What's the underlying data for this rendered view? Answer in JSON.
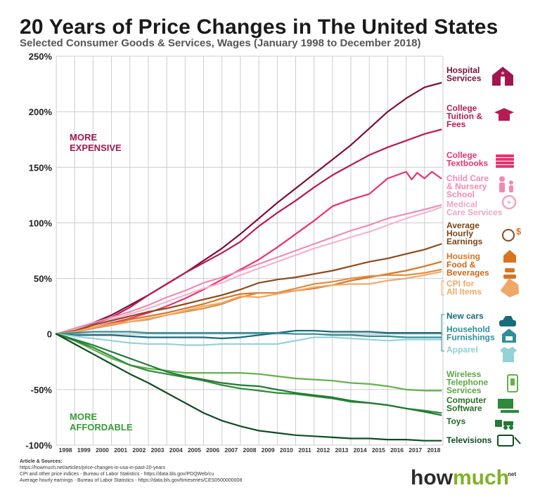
{
  "chart_data": {
    "type": "line",
    "title": "20 Years of Price Changes in The United States",
    "subtitle": "Selected Consumer Goods & Services, Wages (January 1998 to December 2018)",
    "x_ticks": [
      "1998",
      "1999",
      "2000",
      "2001",
      "2002",
      "2003",
      "2004",
      "2005",
      "2006",
      "2007",
      "2008",
      "2009",
      "2010",
      "2011",
      "2012",
      "2013",
      "2014",
      "2015",
      "2016",
      "2017",
      "2018"
    ],
    "x_range": [
      1998,
      2019
    ],
    "y_range": [
      -100,
      250
    ],
    "y_ticks": [
      -100,
      -50,
      0,
      50,
      100,
      150,
      200,
      250
    ],
    "y_tick_labels": [
      "-100%",
      "-50%",
      "0",
      "50%",
      "100%",
      "150%",
      "200%",
      "250%"
    ],
    "grid": true,
    "annotations": [
      {
        "text": [
          "MORE",
          "EXPENSIVE"
        ],
        "color": "#a3154f"
      },
      {
        "text": [
          "MORE",
          "AFFORDABLE"
        ],
        "color": "#3a9a3a"
      }
    ],
    "series": [
      {
        "name": "Hospital Services",
        "color": "#7a0f3c",
        "x": [
          1998,
          1999,
          2000,
          2001,
          2002,
          2003,
          2004,
          2005,
          2006,
          2007,
          2008,
          2009,
          2010,
          2011,
          2012,
          2013,
          2014,
          2015,
          2016,
          2017,
          2018,
          2018.9
        ],
        "values": [
          0,
          5,
          10,
          17,
          26,
          35,
          45,
          55,
          66,
          77,
          90,
          104,
          118,
          131,
          144,
          157,
          170,
          185,
          200,
          212,
          222,
          226
        ]
      },
      {
        "name": "College Tuition & Fees",
        "color": "#b81a52",
        "x": [
          1998,
          1999,
          2000,
          2001,
          2002,
          2003,
          2004,
          2005,
          2006,
          2007,
          2008,
          2009,
          2010,
          2011,
          2012,
          2013,
          2014,
          2015,
          2016,
          2017,
          2018,
          2018.9
        ],
        "values": [
          0,
          4,
          9,
          15,
          24,
          35,
          45,
          55,
          64,
          73,
          83,
          97,
          109,
          120,
          132,
          143,
          152,
          161,
          168,
          174,
          180,
          184
        ]
      },
      {
        "name": "College Textbooks",
        "color": "#e8336f",
        "x": [
          1998,
          1999,
          2000,
          2001,
          2002,
          2003,
          2004,
          2005,
          2006,
          2007,
          2008,
          2009,
          2010,
          2011,
          2012,
          2013,
          2014,
          2015,
          2016,
          2017,
          2017.3,
          2017.6,
          2018,
          2018.4,
          2018.9
        ],
        "values": [
          0,
          3,
          6,
          10,
          14,
          19,
          25,
          32,
          40,
          49,
          58,
          67,
          78,
          90,
          102,
          115,
          121,
          126,
          140,
          146,
          139,
          145,
          140,
          146,
          140
        ]
      },
      {
        "name": "Child Care & Nursery School",
        "color": "#f08ab4",
        "x": [
          1998,
          1999,
          2000,
          2001,
          2002,
          2003,
          2004,
          2005,
          2006,
          2007,
          2008,
          2009,
          2010,
          2011,
          2012,
          2013,
          2014,
          2015,
          2016,
          2017,
          2018,
          2018.9
        ],
        "values": [
          0,
          5,
          10,
          15,
          20,
          26,
          33,
          39,
          46,
          51,
          57,
          63,
          69,
          75,
          81,
          87,
          93,
          98,
          104,
          108,
          112,
          116
        ]
      },
      {
        "name": "Medical Care Services",
        "color": "#f6b3cc",
        "x": [
          1998,
          1999,
          2000,
          2001,
          2002,
          2003,
          2004,
          2005,
          2006,
          2007,
          2008,
          2009,
          2010,
          2011,
          2012,
          2013,
          2014,
          2015,
          2016,
          2017,
          2018,
          2018.9
        ],
        "values": [
          0,
          4,
          8,
          13,
          18,
          23,
          29,
          35,
          41,
          46,
          53,
          59,
          65,
          71,
          77,
          82,
          87,
          92,
          98,
          104,
          109,
          114
        ]
      },
      {
        "name": "Average Hourly Earnings",
        "color": "#8a4b1c",
        "x": [
          1998,
          1999,
          2000,
          2001,
          2002,
          2003,
          2004,
          2005,
          2006,
          2007,
          2008,
          2009,
          2010,
          2011,
          2012,
          2013,
          2014,
          2015,
          2016,
          2017,
          2018,
          2018.9
        ],
        "values": [
          0,
          3,
          8,
          12,
          16,
          20,
          23,
          27,
          31,
          35,
          40,
          46,
          49,
          51,
          54,
          57,
          61,
          65,
          68,
          72,
          76,
          81
        ]
      },
      {
        "name": "Housing",
        "color": "#d8741f",
        "x": [
          1998,
          1999,
          2000,
          2001,
          2002,
          2003,
          2004,
          2005,
          2006,
          2007,
          2008,
          2009,
          2010,
          2011,
          2012,
          2013,
          2014,
          2015,
          2016,
          2017,
          2018,
          2018.9
        ],
        "values": [
          0,
          2,
          5,
          9,
          13,
          16,
          19,
          23,
          27,
          32,
          36,
          37,
          37,
          39,
          41,
          44,
          48,
          51,
          54,
          57,
          61,
          65
        ]
      },
      {
        "name": "Food & Beverages",
        "color": "#e58a3c",
        "x": [
          1998,
          1999,
          2000,
          2001,
          2002,
          2003,
          2004,
          2005,
          2006,
          2007,
          2008,
          2009,
          2010,
          2011,
          2012,
          2013,
          2014,
          2015,
          2016,
          2017,
          2018,
          2018.9
        ],
        "values": [
          0,
          2,
          5,
          8,
          11,
          13,
          17,
          20,
          23,
          27,
          33,
          37,
          37,
          41,
          45,
          47,
          50,
          52,
          53,
          53,
          55,
          58
        ]
      },
      {
        "name": "CPI for All Items",
        "color": "#f0a868",
        "x": [
          1998,
          1999,
          2000,
          2001,
          2002,
          2003,
          2004,
          2005,
          2006,
          2007,
          2008,
          2009,
          2010,
          2011,
          2012,
          2013,
          2014,
          2015,
          2016,
          2017,
          2018,
          2018.9
        ],
        "values": [
          0,
          2,
          6,
          9,
          11,
          14,
          17,
          21,
          25,
          28,
          34,
          33,
          36,
          39,
          42,
          44,
          45,
          45,
          48,
          50,
          53,
          56
        ]
      },
      {
        "name": "New cars",
        "color": "#176c7a",
        "x": [
          1998,
          1999,
          2000,
          2001,
          2002,
          2003,
          2004,
          2005,
          2006,
          2007,
          2008,
          2009,
          2010,
          2011,
          2012,
          2013,
          2014,
          2015,
          2016,
          2017,
          2018,
          2018.9
        ],
        "values": [
          0,
          -1,
          -1,
          -1,
          -2,
          -3,
          -3,
          -3,
          -3,
          -4,
          -3,
          -1,
          1,
          3,
          3,
          2,
          2,
          2,
          1,
          1,
          1,
          1
        ]
      },
      {
        "name": "Household Furnishings",
        "color": "#2e8f99",
        "x": [
          1998,
          1999,
          2000,
          2001,
          2002,
          2003,
          2004,
          2005,
          2006,
          2007,
          2008,
          2009,
          2010,
          2011,
          2012,
          2013,
          2014,
          2015,
          2016,
          2017,
          2018,
          2018.9
        ],
        "values": [
          0,
          1,
          2,
          2,
          2,
          1,
          1,
          1,
          1,
          1,
          1,
          1,
          1,
          0,
          0,
          -1,
          -1,
          -2,
          -2,
          -3,
          -3,
          -3
        ]
      },
      {
        "name": "Apparel",
        "color": "#93d3d8",
        "x": [
          1998,
          1999,
          2000,
          2001,
          2002,
          2003,
          2004,
          2005,
          2006,
          2007,
          2008,
          2009,
          2010,
          2011,
          2012,
          2013,
          2014,
          2015,
          2016,
          2017,
          2018,
          2018.9
        ],
        "values": [
          0,
          -2,
          -4,
          -6,
          -8,
          -9,
          -9,
          -10,
          -10,
          -9,
          -9,
          -9,
          -9,
          -6,
          -3,
          -3,
          -4,
          -5,
          -6,
          -5,
          -5,
          -5
        ]
      },
      {
        "name": "Wireless Telephone Services",
        "color": "#63b24a",
        "x": [
          1998,
          1999,
          2000,
          2001,
          2002,
          2003,
          2004,
          2005,
          2006,
          2007,
          2008,
          2009,
          2010,
          2011,
          2012,
          2013,
          2014,
          2015,
          2016,
          2017,
          2018,
          2018.9
        ],
        "values": [
          0,
          -6,
          -14,
          -22,
          -28,
          -31,
          -33,
          -35,
          -35,
          -35,
          -35,
          -36,
          -38,
          -40,
          -41,
          -42,
          -44,
          -45,
          -47,
          -50,
          -51,
          -51
        ]
      },
      {
        "name": "Computer Software",
        "color": "#2d8a3a",
        "x": [
          1998,
          1999,
          2000,
          2001,
          2002,
          2003,
          2004,
          2005,
          2006,
          2007,
          2008,
          2009,
          2010,
          2011,
          2012,
          2013,
          2014,
          2015,
          2016,
          2017,
          2018,
          2018.9
        ],
        "values": [
          0,
          -6,
          -12,
          -20,
          -28,
          -33,
          -36,
          -39,
          -42,
          -46,
          -49,
          -51,
          -53,
          -54,
          -56,
          -58,
          -61,
          -62,
          -64,
          -67,
          -69,
          -71
        ]
      },
      {
        "name": "Toys",
        "color": "#1f7a34",
        "x": [
          1998,
          1999,
          2000,
          2001,
          2002,
          2003,
          2004,
          2005,
          2006,
          2007,
          2008,
          2009,
          2010,
          2011,
          2012,
          2013,
          2014,
          2015,
          2016,
          2017,
          2018,
          2018.9
        ],
        "values": [
          0,
          -5,
          -10,
          -16,
          -22,
          -28,
          -34,
          -38,
          -41,
          -44,
          -46,
          -47,
          -50,
          -53,
          -55,
          -57,
          -60,
          -62,
          -64,
          -67,
          -70,
          -73
        ]
      },
      {
        "name": "Televisions",
        "color": "#0f4d20",
        "x": [
          1998,
          1999,
          2000,
          2001,
          2002,
          2003,
          2004,
          2005,
          2006,
          2007,
          2008,
          2009,
          2010,
          2011,
          2012,
          2013,
          2014,
          2015,
          2016,
          2017,
          2018,
          2018.9
        ],
        "values": [
          0,
          -9,
          -18,
          -27,
          -36,
          -44,
          -53,
          -62,
          -71,
          -78,
          -83,
          -87,
          -89,
          -91,
          -92,
          -93,
          -94,
          -94,
          -95,
          -95,
          -96,
          -96
        ]
      }
    ],
    "labels": [
      {
        "series": "Hospital Services",
        "lines": [
          "Hospital",
          "Services"
        ],
        "color": "#7a0f3c",
        "icon": "hospital-icon"
      },
      {
        "series": "College Tuition & Fees",
        "lines": [
          "College",
          "Tuition &",
          "Fees"
        ],
        "color": "#b81a52",
        "icon": "graduation-cap-icon"
      },
      {
        "series": "College Textbooks",
        "lines": [
          "College",
          "Textbooks"
        ],
        "color": "#e8336f",
        "icon": "books-icon"
      },
      {
        "series": "Child Care & Nursery School",
        "lines": [
          "Child Care",
          "& Nursery",
          "School"
        ],
        "color": "#f08ab4",
        "icon": "child-care-icon"
      },
      {
        "series": "Medical Care Services",
        "lines": [
          "Medical",
          "Care Services"
        ],
        "color": "#f3a3c4",
        "icon": "medical-icon"
      },
      {
        "series": "Average Hourly Earnings",
        "lines": [
          "Average",
          "Hourly",
          "Earnings"
        ],
        "color": "#7a4518",
        "icon": "hourly-earnings-icon"
      },
      {
        "series": "Housing",
        "lines": [
          "Housing"
        ],
        "color": "#d8741f",
        "icon": "house-icon"
      },
      {
        "series": "Food & Beverages",
        "lines": [
          "Food &",
          "Beverages"
        ],
        "color": "#c9681c",
        "icon": "food-icon"
      },
      {
        "series": "CPI for All Items",
        "lines": [
          "CPI for",
          "All Items"
        ],
        "color": "#f0a868",
        "icon": "price-tags-icon"
      },
      {
        "series": "New cars",
        "lines": [
          "New cars"
        ],
        "color": "#176c7a",
        "icon": "car-icon"
      },
      {
        "series": "Household Furnishings",
        "lines": [
          "Household",
          "Furnishings"
        ],
        "color": "#2e8f99",
        "icon": "furniture-icon"
      },
      {
        "series": "Apparel",
        "lines": [
          "Apparel"
        ],
        "color": "#8fcfd5",
        "icon": "apparel-icon"
      },
      {
        "series": "Wireless Telephone Services",
        "lines": [
          "Wireless",
          "Telephone",
          "Services"
        ],
        "color": "#5aa843",
        "icon": "phone-icon"
      },
      {
        "series": "Computer Software",
        "lines": [
          "Computer",
          "Software"
        ],
        "color": "#2a6e2a",
        "icon": "computer-icon"
      },
      {
        "series": "Toys",
        "lines": [
          "Toys"
        ],
        "color": "#1f6a2a",
        "icon": "toys-icon"
      },
      {
        "series": "Televisions",
        "lines": [
          "Televisions"
        ],
        "color": "#0f4d20",
        "icon": "television-icon"
      }
    ]
  },
  "sources": {
    "heading": "Article & Sources:",
    "lines": [
      "https://howmuch.net/articles/price-changes-in-usa-in-past-20-years",
      "CPI and other price indices - Bureau of Labor Statistics - https://data.bls.gov/PDQWeb/cu",
      "Average hourly earnings - Bureau of Labor Statistics - https://data.bls.gov/timeseries/CES0500000008"
    ]
  },
  "brand": {
    "pre": "how",
    "mid": "much",
    "suffix": "net"
  }
}
